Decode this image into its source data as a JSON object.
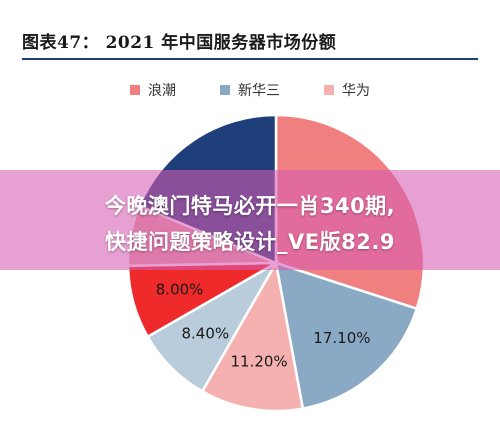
{
  "header": {
    "title": "图表47：  2021 年中国服务器市场份额"
  },
  "overlay": {
    "line1": "今晚澳门特马必开一肖340期,",
    "line2": "快捷问题策略设计_VE版82.9"
  },
  "chart_data": {
    "type": "pie",
    "legend_position": "top",
    "series": [
      {
        "name": "浪潮",
        "color": "#f08080"
      },
      {
        "name": "新华三",
        "color": "#8aa9c4"
      },
      {
        "name": "华为",
        "color": "#f5b0b0"
      }
    ],
    "slices": [
      {
        "value": 30.0,
        "label": "",
        "color": "#f08080"
      },
      {
        "value": 17.1,
        "label": "17.10%",
        "color": "#8aa9c4"
      },
      {
        "value": 11.2,
        "label": "11.20%",
        "color": "#f5b0b0"
      },
      {
        "value": 8.4,
        "label": "8.40%",
        "color": "#b9ccdc"
      },
      {
        "value": 8.0,
        "label": "8.00%",
        "color": "#ef2a2a"
      },
      {
        "value": 6.6,
        "label": "",
        "color": "#e7a3a3"
      },
      {
        "value": 18.7,
        "label": "",
        "color": "#1f3f7a"
      }
    ]
  }
}
